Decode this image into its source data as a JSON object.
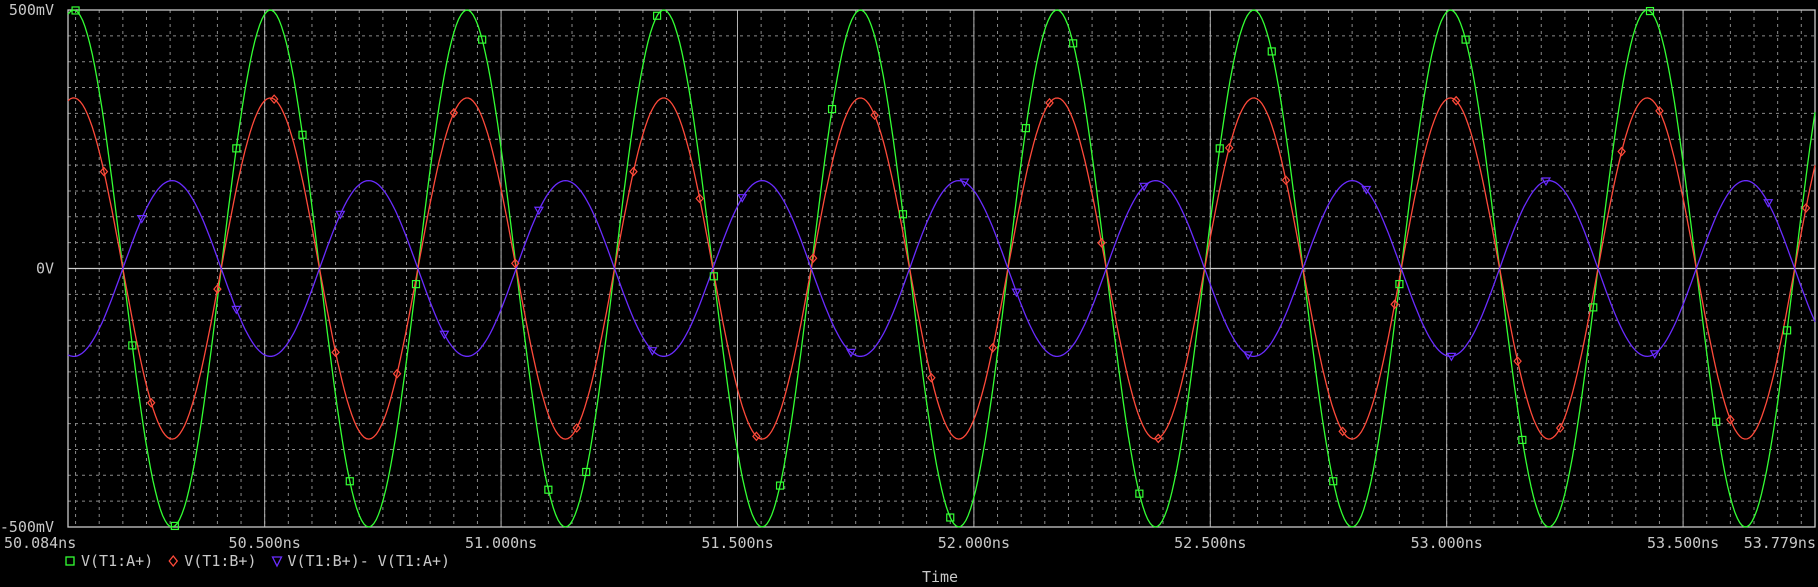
{
  "chart_data": {
    "type": "line",
    "xlabel": "Time",
    "ylabel": "",
    "xlim": [
      50.084,
      53.779
    ],
    "ylim": [
      -500,
      500
    ],
    "x_unit": "ns",
    "y_unit": "mV",
    "x_ticks": [
      {
        "value": 50.084,
        "label": "50.084ns"
      },
      {
        "value": 50.5,
        "label": "50.500ns"
      },
      {
        "value": 51.0,
        "label": "51.000ns"
      },
      {
        "value": 51.5,
        "label": "51.500ns"
      },
      {
        "value": 52.0,
        "label": "52.000ns"
      },
      {
        "value": 52.5,
        "label": "52.500ns"
      },
      {
        "value": 53.0,
        "label": "53.000ns"
      },
      {
        "value": 53.5,
        "label": "53.500ns"
      },
      {
        "value": 53.779,
        "label": "53.779ns"
      }
    ],
    "y_ticks": [
      {
        "value": 500,
        "label": "500mV"
      },
      {
        "value": 0,
        "label": "0V"
      },
      {
        "value": -500,
        "label": "-500mV"
      }
    ],
    "grid": true,
    "legend_position": "bottom-left",
    "series": [
      {
        "name": "V(T1:A+)",
        "color": "#33ff33",
        "marker": "square",
        "amplitude": 500,
        "period": 0.416,
        "phase_zero_cross": 50.2,
        "polarity": -1,
        "marker_times": [
          50.1,
          50.22,
          50.31,
          50.44,
          50.58,
          50.68,
          50.82,
          50.96,
          51.1,
          51.18,
          51.33,
          51.45,
          51.59,
          51.7,
          51.85,
          51.95,
          52.11,
          52.21,
          52.35,
          52.52,
          52.63,
          52.76,
          52.9,
          53.04,
          53.16,
          53.31,
          53.43,
          53.57,
          53.72
        ]
      },
      {
        "name": "V(T1:B+)",
        "color": "#ff4a3a",
        "marker": "diamond",
        "amplitude": 330,
        "period": 0.416,
        "phase_zero_cross": 50.2,
        "polarity": -1,
        "marker_times": [
          50.16,
          50.26,
          50.4,
          50.52,
          50.65,
          50.78,
          50.9,
          51.03,
          51.16,
          51.28,
          51.42,
          51.54,
          51.66,
          51.79,
          51.91,
          52.04,
          52.16,
          52.27,
          52.39,
          52.54,
          52.66,
          52.78,
          52.89,
          53.02,
          53.15,
          53.24,
          53.37,
          53.45,
          53.6,
          53.76
        ]
      },
      {
        "name": "V(T1:B+)- V(T1:A+)",
        "color": "#6a2cff",
        "marker": "triangle-down",
        "amplitude": 170,
        "period": 0.416,
        "phase_zero_cross": 50.2,
        "polarity": 1,
        "marker_times": [
          50.24,
          50.44,
          50.66,
          50.88,
          51.08,
          51.32,
          51.51,
          51.74,
          51.98,
          52.09,
          52.36,
          52.58,
          52.83,
          53.01,
          53.21,
          53.44,
          53.68
        ]
      }
    ]
  }
}
